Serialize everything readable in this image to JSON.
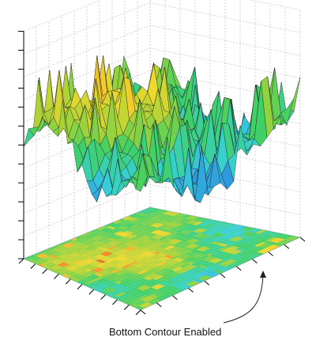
{
  "chart_data": {
    "type": "surface3d",
    "title": "",
    "xlabel": "",
    "ylabel": "",
    "zlabel": "",
    "grid": true,
    "z_range": [
      0,
      1
    ],
    "colormap": [
      "#2c3ea8",
      "#2e8fe0",
      "#36d0d8",
      "#3fd066",
      "#9fd23a",
      "#f0d82c",
      "#ef8a24",
      "#e33a22"
    ],
    "surface": {
      "rows": 24,
      "cols": 24,
      "peak_x": 0.3,
      "peak_y": 0.35,
      "peak_height": 0.95,
      "description_of_shape": ""
    },
    "bottom_contour": true,
    "annotation": "Bottom Contour Enabled"
  },
  "colors": {
    "grid_line": "#c8c8c8",
    "mesh_line": "#1a1a1a",
    "axis_line": "#000000"
  }
}
